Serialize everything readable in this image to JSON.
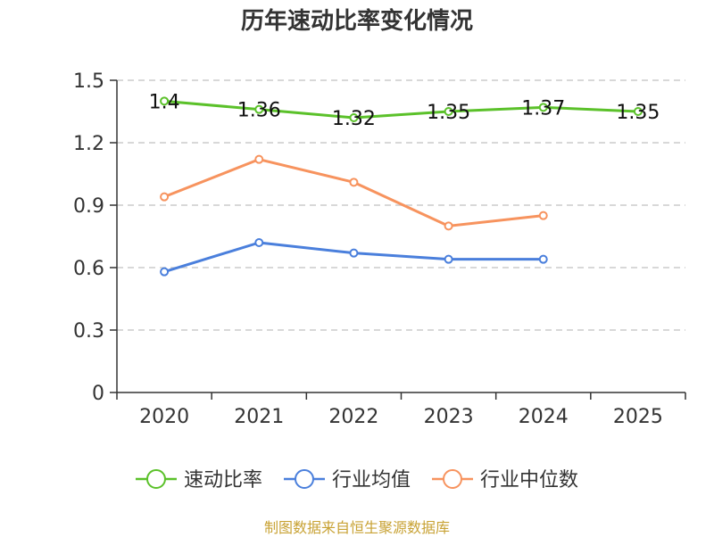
{
  "chart_data": {
    "type": "line",
    "title": "历年速动比率变化情况",
    "categories": [
      "2020",
      "2021",
      "2022",
      "2023",
      "2024",
      "2025"
    ],
    "y_ticks": [
      "0",
      "0.3",
      "0.6",
      "0.9",
      "1.2",
      "1.5"
    ],
    "ylim": [
      0,
      1.5
    ],
    "grid": true,
    "legend_position": "bottom",
    "series": [
      {
        "name": "速动比率",
        "color": "#5bc12a",
        "values": [
          1.4,
          1.36,
          1.32,
          1.35,
          1.37,
          1.35
        ],
        "labels": [
          "1.4",
          "1.36",
          "1.32",
          "1.35",
          "1.37",
          "1.35"
        ]
      },
      {
        "name": "行业均值",
        "color": "#4a7fdc",
        "values": [
          0.58,
          0.72,
          0.67,
          0.64,
          0.64,
          null
        ]
      },
      {
        "name": "行业中位数",
        "color": "#f7935e",
        "values": [
          0.94,
          1.12,
          1.01,
          0.8,
          0.85,
          null
        ]
      }
    ]
  },
  "footer": {
    "source": "制图数据来自恒生聚源数据库"
  }
}
